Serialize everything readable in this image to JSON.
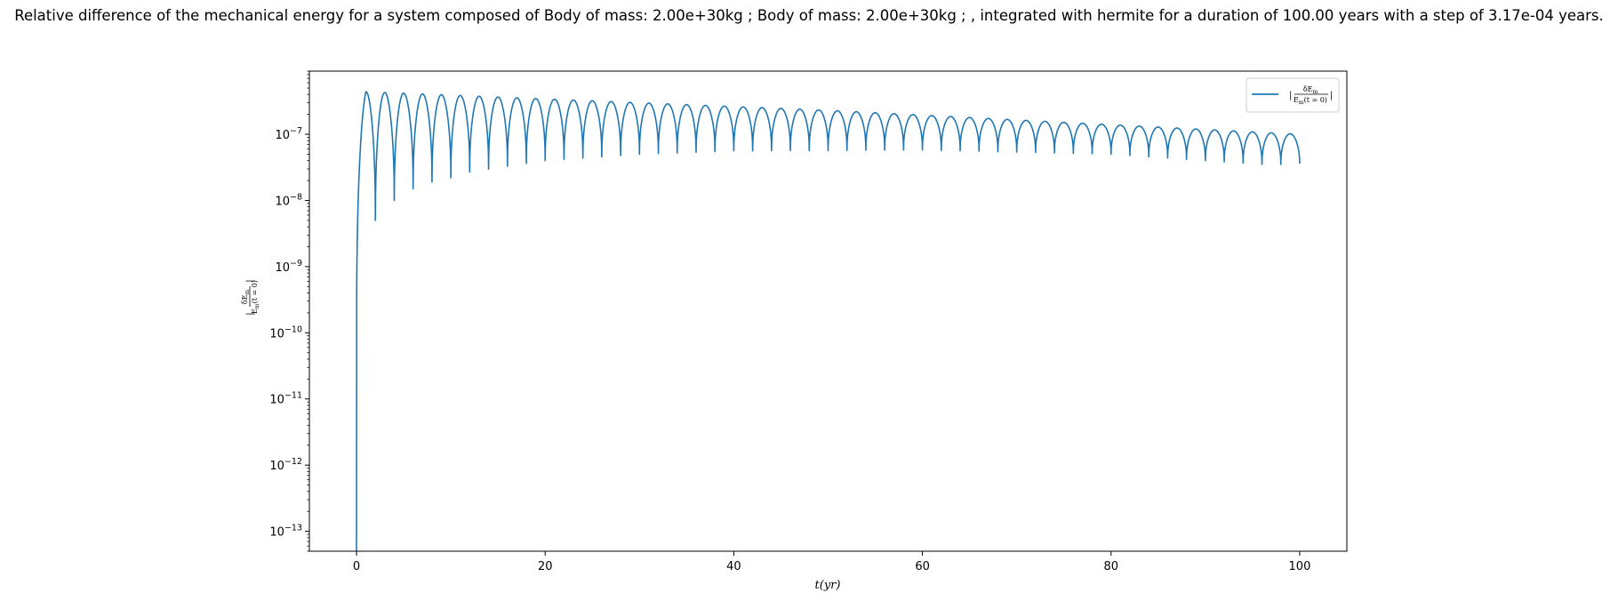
{
  "chart_data": {
    "type": "line",
    "title": "Relative difference of the mechanical energy for a system composed of Body of mass: 2.00e+30kg ; Body of mass: 2.00e+30kg ; , integrated with hermite for a duration of 100.00 years with a step of 3.17e-04 years.",
    "xlabel": "t(yr)",
    "ylabel": "|δE_m / E_m(t=0)|",
    "xlim": [
      -5,
      105
    ],
    "ylim": [
      5e-14,
      9e-07
    ],
    "yscale": "log",
    "x_ticks": [
      0,
      20,
      40,
      60,
      80,
      100
    ],
    "x_tick_labels": [
      "0",
      "20",
      "40",
      "60",
      "80",
      "100"
    ],
    "y_ticks": [
      1e-13,
      1e-12,
      1e-11,
      1e-10,
      1e-09,
      1e-08,
      1e-07
    ],
    "y_tick_labels": [
      "10^-13",
      "10^-12",
      "10^-11",
      "10^-10",
      "10^-9",
      "10^-8",
      "10^-7"
    ],
    "grid": false,
    "legend_position": "top-right",
    "series": [
      {
        "name": "|δE_m / E_m(t=0)|",
        "color": "#1f77b4",
        "oscillation_period": 2.0,
        "x_range": [
          0,
          100
        ],
        "peaks": [
          [
            1,
            4.4e-07
          ],
          [
            50,
            2.3e-07
          ],
          [
            100,
            1e-07
          ]
        ],
        "troughs": [
          [
            2,
            5e-09
          ],
          [
            4,
            1e-08
          ],
          [
            6,
            1.5e-08
          ],
          [
            8,
            1.9e-08
          ],
          [
            10,
            2.2e-08
          ],
          [
            12,
            2.7e-08
          ],
          [
            16,
            3.3e-08
          ],
          [
            20,
            4e-08
          ],
          [
            30,
            5e-08
          ],
          [
            40,
            5.6e-08
          ],
          [
            60,
            5.8e-08
          ],
          [
            80,
            5e-08
          ],
          [
            96,
            3.5e-08
          ]
        ],
        "start_value": 5e-14,
        "end_value": 3.6e-08
      }
    ]
  }
}
